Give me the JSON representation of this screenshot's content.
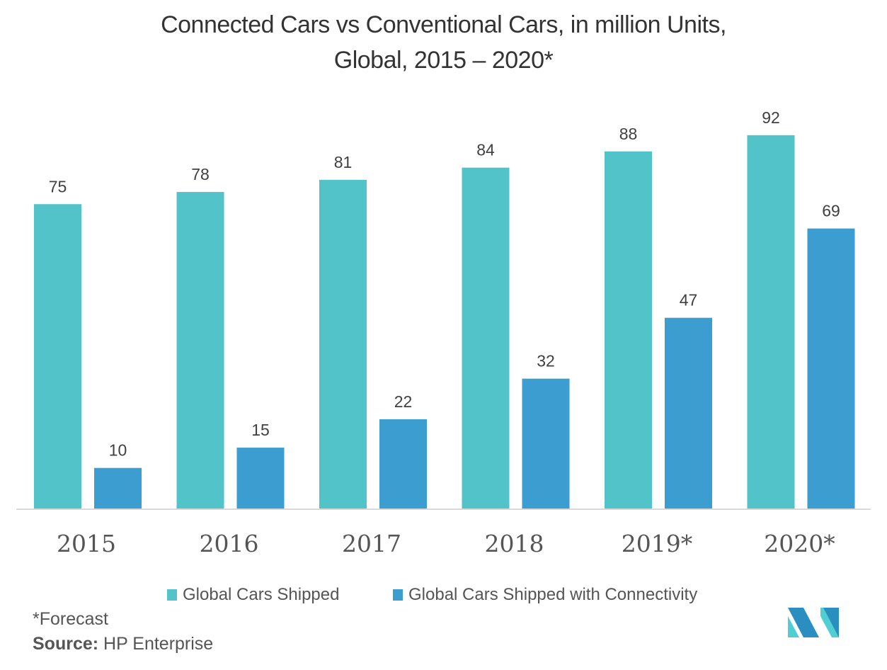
{
  "chart_data": {
    "type": "bar",
    "title": "Connected Cars vs Conventional Cars, in million Units, Global, 2015 – 2020*",
    "title_lines": [
      "Connected Cars vs Conventional Cars, in million Units,",
      "Global, 2015 – 2020*"
    ],
    "categories": [
      "2015",
      "2016",
      "2017",
      "2018",
      "2019*",
      "2020*"
    ],
    "series": [
      {
        "name": "Global Cars Shipped",
        "color": "#52c3c9",
        "values": [
          75,
          78,
          81,
          84,
          88,
          92
        ]
      },
      {
        "name": "Global Cars Shipped with Connectivity",
        "color": "#3b9dd0",
        "values": [
          10,
          15,
          22,
          32,
          47,
          69
        ]
      }
    ],
    "xlabel": "",
    "ylabel": "",
    "ylim": [
      0,
      100
    ],
    "grid": false,
    "legend": "bottom",
    "data_labels": true
  },
  "footer": {
    "note": "*Forecast",
    "source_label": "Source:",
    "source_value": " HP Enterprise"
  },
  "logo": {
    "name": "mordor-intelligence-logo",
    "colors": [
      "#2b8ec0",
      "#4fcfd2"
    ]
  }
}
